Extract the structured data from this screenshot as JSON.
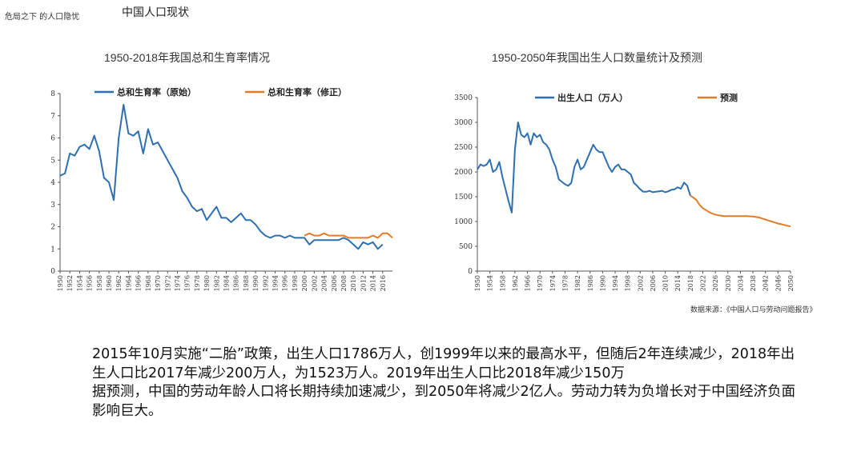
{
  "header": {
    "small_label": "危局之下 的人口隐忧",
    "title": "中国人口现状"
  },
  "source": "数据来源：《中国人口与劳动问题报告》",
  "body": {
    "paragraph1": "2015年10月实施“二胎”政策，出生人口1786万人，创1999年以来的最高水平，但随后2年连续减少，2018年出生人口比2017年减少200万人，为1523万人。2019年出生人口比2018年减少150万",
    "paragraph2": "据预测，中国的劳动年龄人口将长期持续加速减少，到2050年将减少2亿人。劳动力转为负增长对于中国经济负面影响巨大。"
  },
  "chart_data": [
    {
      "type": "line",
      "title": "1950-2018年我国总和生育率情况",
      "xlabel": "",
      "ylabel": "",
      "xlim": [
        1950,
        2018
      ],
      "ylim": [
        0,
        8
      ],
      "yticks": [
        0,
        1,
        2,
        3,
        4,
        5,
        6,
        7,
        8
      ],
      "xticks": [
        1950,
        1952,
        1954,
        1956,
        1958,
        1960,
        1962,
        1964,
        1966,
        1968,
        1970,
        1972,
        1974,
        1976,
        1978,
        1980,
        1982,
        1984,
        1986,
        1988,
        1990,
        1992,
        1994,
        1996,
        1998,
        2000,
        2002,
        2004,
        2006,
        2008,
        2010,
        2012,
        2014,
        2016
      ],
      "grid": false,
      "legend_position": "top",
      "series": [
        {
          "name": "总和生育率（原始）",
          "color": "#2e6fb0",
          "x": [
            1950,
            1951,
            1952,
            1953,
            1954,
            1955,
            1956,
            1957,
            1958,
            1959,
            1960,
            1961,
            1962,
            1963,
            1964,
            1965,
            1966,
            1967,
            1968,
            1969,
            1970,
            1971,
            1972,
            1973,
            1974,
            1975,
            1976,
            1977,
            1978,
            1979,
            1980,
            1981,
            1982,
            1983,
            1984,
            1985,
            1986,
            1987,
            1988,
            1989,
            1990,
            1991,
            1992,
            1993,
            1994,
            1995,
            1996,
            1997,
            1998,
            1999,
            2000,
            2001,
            2002,
            2003,
            2004,
            2005,
            2006,
            2007,
            2008,
            2009,
            2010,
            2011,
            2012,
            2013,
            2014,
            2015,
            2016
          ],
          "y": [
            4.3,
            4.4,
            5.3,
            5.2,
            5.6,
            5.7,
            5.5,
            6.1,
            5.4,
            4.2,
            4.0,
            3.2,
            6.0,
            7.5,
            6.2,
            6.1,
            6.3,
            5.3,
            6.4,
            5.7,
            5.8,
            5.4,
            5.0,
            4.6,
            4.2,
            3.6,
            3.3,
            2.9,
            2.7,
            2.8,
            2.3,
            2.6,
            2.9,
            2.4,
            2.4,
            2.2,
            2.4,
            2.6,
            2.3,
            2.3,
            2.1,
            1.8,
            1.6,
            1.5,
            1.6,
            1.6,
            1.5,
            1.6,
            1.5,
            1.5,
            1.5,
            1.2,
            1.4,
            1.4,
            1.4,
            1.4,
            1.4,
            1.4,
            1.5,
            1.4,
            1.2,
            1.0,
            1.3,
            1.2,
            1.3,
            1.0,
            1.2
          ]
        },
        {
          "name": "总和生育率（修正）",
          "color": "#e07b28",
          "x": [
            2000,
            2001,
            2002,
            2003,
            2004,
            2005,
            2006,
            2007,
            2008,
            2009,
            2010,
            2011,
            2012,
            2013,
            2014,
            2015,
            2016,
            2017,
            2018
          ],
          "y": [
            1.6,
            1.7,
            1.6,
            1.6,
            1.7,
            1.6,
            1.6,
            1.6,
            1.6,
            1.5,
            1.5,
            1.5,
            1.5,
            1.5,
            1.6,
            1.5,
            1.7,
            1.7,
            1.5
          ]
        }
      ]
    },
    {
      "type": "line",
      "title": "1950-2050年我国出生人口数量统计及预测",
      "xlabel": "",
      "ylabel": "",
      "xlim": [
        1950,
        2050
      ],
      "ylim": [
        0,
        3500
      ],
      "yticks": [
        0,
        500,
        1000,
        1500,
        2000,
        2500,
        3000,
        3500
      ],
      "xticks": [
        1950,
        1954,
        1958,
        1962,
        1966,
        1970,
        1974,
        1978,
        1982,
        1986,
        1990,
        1994,
        1998,
        2002,
        2006,
        2010,
        2014,
        2018,
        2022,
        2026,
        2030,
        2034,
        2038,
        2042,
        2046,
        2050
      ],
      "grid": false,
      "legend_position": "top",
      "series": [
        {
          "name": "出生人口（万人）",
          "color": "#2e6fb0",
          "x": [
            1950,
            1951,
            1952,
            1953,
            1954,
            1955,
            1956,
            1957,
            1958,
            1959,
            1960,
            1961,
            1962,
            1963,
            1964,
            1965,
            1966,
            1967,
            1968,
            1969,
            1970,
            1971,
            1972,
            1973,
            1974,
            1975,
            1976,
            1977,
            1978,
            1979,
            1980,
            1981,
            1982,
            1983,
            1984,
            1985,
            1986,
            1987,
            1988,
            1989,
            1990,
            1991,
            1992,
            1993,
            1994,
            1995,
            1996,
            1997,
            1998,
            1999,
            2000,
            2001,
            2002,
            2003,
            2004,
            2005,
            2006,
            2007,
            2008,
            2009,
            2010,
            2011,
            2012,
            2013,
            2014,
            2015,
            2016,
            2017,
            2018
          ],
          "y": [
            2050,
            2150,
            2120,
            2150,
            2250,
            2000,
            2050,
            2200,
            1900,
            1650,
            1400,
            1180,
            2450,
            3000,
            2750,
            2700,
            2780,
            2550,
            2780,
            2700,
            2750,
            2600,
            2550,
            2450,
            2250,
            2100,
            1850,
            1800,
            1750,
            1720,
            1780,
            2100,
            2250,
            2050,
            2100,
            2250,
            2400,
            2550,
            2450,
            2400,
            2400,
            2250,
            2100,
            2000,
            2100,
            2150,
            2050,
            2050,
            2000,
            1950,
            1780,
            1720,
            1650,
            1600,
            1600,
            1620,
            1590,
            1600,
            1610,
            1620,
            1590,
            1610,
            1640,
            1650,
            1690,
            1660,
            1786,
            1723,
            1523
          ]
        },
        {
          "name": "预测",
          "color": "#e07b28",
          "x": [
            2018,
            2019,
            2020,
            2021,
            2022,
            2023,
            2024,
            2025,
            2026,
            2027,
            2028,
            2029,
            2030,
            2031,
            2032,
            2033,
            2034,
            2035,
            2036,
            2037,
            2038,
            2039,
            2040,
            2041,
            2042,
            2043,
            2044,
            2045,
            2046,
            2047,
            2048,
            2049,
            2050
          ],
          "y": [
            1523,
            1480,
            1430,
            1330,
            1270,
            1230,
            1190,
            1160,
            1140,
            1125,
            1115,
            1110,
            1110,
            1110,
            1110,
            1110,
            1110,
            1110,
            1110,
            1105,
            1100,
            1090,
            1080,
            1060,
            1040,
            1020,
            1000,
            980,
            960,
            945,
            930,
            915,
            900
          ]
        }
      ]
    }
  ]
}
